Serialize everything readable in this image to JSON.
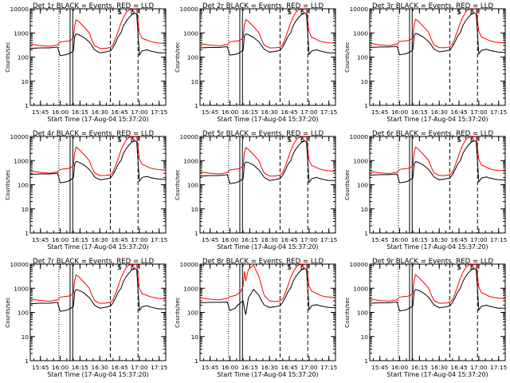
{
  "chart_data": {
    "type": "line",
    "y_scale": "log",
    "ylim": [
      1,
      10000
    ],
    "xlim": [
      "15:37:20",
      "17:20:00"
    ],
    "ylabel": "Counts/sec",
    "xlabel": "Start Time (17-Aug-04 15:37:20)",
    "x_ticks": [
      "15:45",
      "16:00",
      "16:15",
      "16:30",
      "16:45",
      "17:00",
      "17:15"
    ],
    "y_ticks": [
      "1",
      "10",
      "100",
      "1000",
      "10000"
    ],
    "markers": [
      "S",
      "E"
    ],
    "colors": {
      "events": "#000000",
      "lld": "#ff0000"
    },
    "vertical_lines": {
      "dotted": "15:59:00",
      "solid": [
        "16:07:30",
        "16:09:30"
      ],
      "dashed": [
        "16:38:00",
        "16:59:00"
      ]
    },
    "times": [
      "15:37:20",
      "15:45:00",
      "15:52:00",
      "15:58:00",
      "16:00:00",
      "16:04:00",
      "16:06:00",
      "16:08:00",
      "16:10:00",
      "16:11:00",
      "16:12:00",
      "16:14:00",
      "16:18:00",
      "16:22:00",
      "16:24:00",
      "16:26:00",
      "16:30:00",
      "16:34:00",
      "16:38:00",
      "16:40:00",
      "16:42:00",
      "16:44:00",
      "16:46:00",
      "16:48:00",
      "16:50:00",
      "16:52:00",
      "16:54:00",
      "16:56:00",
      "16:58:00",
      "17:00:00",
      "17:02:00",
      "17:04:00",
      "17:06:00",
      "17:08:00",
      "17:10:00",
      "17:12:00",
      "17:15:00",
      "17:20:00"
    ],
    "panels": [
      {
        "title": "Det 1r BLACK = Events, RED = LLD",
        "events": [
          230,
          240,
          240,
          260,
          115,
          125,
          135,
          150,
          180,
          700,
          900,
          850,
          650,
          420,
          300,
          200,
          150,
          160,
          180,
          250,
          400,
          700,
          1000,
          2000,
          3000,
          4200,
          5500,
          7000,
          6000,
          120,
          180,
          190,
          200,
          180,
          170,
          160,
          150,
          150
        ],
        "lld": [
          350,
          300,
          280,
          320,
          420,
          450,
          460,
          500,
          600,
          2000,
          3500,
          3000,
          1800,
          1000,
          500,
          300,
          230,
          230,
          250,
          320,
          600,
          1200,
          2500,
          4500,
          7000,
          9000,
          9500,
          10000,
          9500,
          1000,
          600,
          550,
          500,
          450,
          420,
          400,
          380,
          360
        ]
      },
      {
        "title": "Det 2r BLACK = Events, RED = LLD",
        "events": [
          240,
          250,
          250,
          270,
          120,
          130,
          140,
          160,
          190,
          720,
          900,
          850,
          650,
          420,
          300,
          210,
          160,
          170,
          190,
          260,
          420,
          720,
          1000,
          2000,
          3100,
          4300,
          5600,
          7000,
          6000,
          130,
          180,
          190,
          200,
          180,
          170,
          160,
          150,
          150
        ],
        "lld": [
          360,
          310,
          290,
          330,
          430,
          460,
          470,
          510,
          610,
          2100,
          3600,
          3000,
          1800,
          1000,
          520,
          310,
          240,
          240,
          260,
          330,
          620,
          1250,
          2600,
          4600,
          7100,
          9100,
          9600,
          10000,
          9500,
          1100,
          650,
          600,
          520,
          460,
          430,
          410,
          390,
          370
        ]
      },
      {
        "title": "Det 3r BLACK = Events, RED = LLD",
        "events": [
          250,
          260,
          260,
          280,
          125,
          135,
          145,
          165,
          200,
          750,
          950,
          880,
          670,
          430,
          310,
          215,
          165,
          175,
          195,
          270,
          430,
          740,
          1050,
          2050,
          3200,
          4400,
          5700,
          7100,
          6100,
          135,
          190,
          200,
          210,
          190,
          180,
          170,
          160,
          155
        ],
        "lld": [
          370,
          320,
          300,
          340,
          440,
          470,
          480,
          520,
          620,
          2150,
          3700,
          3100,
          1850,
          1050,
          530,
          320,
          245,
          245,
          265,
          340,
          640,
          1300,
          2650,
          4700,
          7200,
          9200,
          9700,
          10000,
          9600,
          1150,
          680,
          620,
          540,
          480,
          450,
          420,
          400,
          380
        ]
      },
      {
        "title": "Det 4r BLACK = Events, RED = LLD",
        "events": [
          270,
          280,
          280,
          300,
          120,
          130,
          140,
          160,
          195,
          720,
          920,
          860,
          660,
          430,
          310,
          210,
          160,
          170,
          190,
          260,
          420,
          720,
          1000,
          2000,
          3100,
          4300,
          5600,
          7000,
          6000,
          140,
          200,
          210,
          220,
          200,
          190,
          180,
          170,
          165
        ],
        "lld": [
          380,
          320,
          300,
          340,
          430,
          460,
          470,
          510,
          610,
          2100,
          3600,
          3000,
          1800,
          1000,
          520,
          310,
          240,
          240,
          260,
          330,
          620,
          1250,
          2600,
          4600,
          7100,
          9100,
          9600,
          10000,
          9500,
          1200,
          700,
          640,
          560,
          500,
          470,
          440,
          420,
          400
        ]
      },
      {
        "title": "Det 5r BLACK = Events, RED = LLD",
        "events": [
          230,
          240,
          240,
          260,
          110,
          120,
          130,
          150,
          180,
          700,
          880,
          830,
          640,
          410,
          290,
          200,
          150,
          160,
          180,
          250,
          400,
          700,
          980,
          1950,
          3000,
          4200,
          5500,
          6900,
          5900,
          125,
          180,
          190,
          200,
          180,
          170,
          160,
          150,
          150
        ],
        "lld": [
          340,
          300,
          280,
          320,
          410,
          440,
          450,
          490,
          590,
          2000,
          3500,
          2900,
          1750,
          980,
          500,
          300,
          230,
          230,
          250,
          320,
          600,
          1200,
          2500,
          4500,
          7000,
          9000,
          9500,
          10000,
          9400,
          1000,
          620,
          560,
          500,
          450,
          420,
          400,
          380,
          360
        ]
      },
      {
        "title": "Det 6r BLACK = Events, RED = LLD",
        "events": [
          250,
          260,
          260,
          280,
          120,
          130,
          140,
          160,
          190,
          720,
          900,
          850,
          650,
          420,
          300,
          210,
          160,
          170,
          190,
          260,
          420,
          720,
          1000,
          2000,
          3100,
          4300,
          5600,
          7000,
          6000,
          130,
          190,
          200,
          210,
          190,
          180,
          170,
          160,
          155
        ],
        "lld": [
          360,
          310,
          290,
          330,
          430,
          460,
          470,
          510,
          610,
          2100,
          3600,
          3000,
          1800,
          1000,
          520,
          310,
          240,
          240,
          260,
          330,
          620,
          1250,
          2600,
          4600,
          7100,
          9100,
          9600,
          10000,
          9500,
          1100,
          650,
          600,
          520,
          460,
          430,
          410,
          390,
          370
        ]
      },
      {
        "title": "Det 7r BLACK = Events, RED = LLD",
        "events": [
          230,
          240,
          240,
          260,
          110,
          120,
          130,
          150,
          180,
          700,
          880,
          830,
          640,
          410,
          290,
          200,
          150,
          160,
          180,
          250,
          400,
          700,
          980,
          1950,
          3000,
          4200,
          5500,
          6900,
          5900,
          120,
          170,
          180,
          190,
          170,
          160,
          150,
          140,
          140
        ],
        "lld": [
          360,
          310,
          290,
          330,
          430,
          460,
          470,
          510,
          610,
          2100,
          3600,
          3000,
          1800,
          1000,
          520,
          310,
          240,
          240,
          260,
          330,
          620,
          1250,
          2600,
          4600,
          7100,
          9100,
          9600,
          10000,
          9500,
          1000,
          600,
          550,
          500,
          450,
          420,
          400,
          380,
          360
        ]
      },
      {
        "title": "Det 8r BLACK = Events, RED = LLD",
        "events": [
          250,
          260,
          260,
          270,
          120,
          150,
          200,
          250,
          300,
          150,
          80,
          400,
          900,
          500,
          300,
          200,
          160,
          170,
          190,
          260,
          420,
          720,
          1000,
          2000,
          3100,
          4300,
          5600,
          7000,
          6000,
          130,
          190,
          200,
          210,
          190,
          180,
          170,
          160,
          155
        ],
        "lld": [
          400,
          350,
          330,
          380,
          450,
          500,
          600,
          700,
          1200,
          5000,
          2000,
          6000,
          9000,
          3000,
          1200,
          500,
          300,
          280,
          300,
          360,
          650,
          1300,
          2700,
          4700,
          7200,
          9200,
          9700,
          10000,
          9600,
          1200,
          750,
          680,
          600,
          520,
          480,
          450,
          430,
          410
        ]
      },
      {
        "title": "Det 9r BLACK = Events, RED = LLD",
        "events": [
          240,
          250,
          250,
          270,
          115,
          125,
          135,
          155,
          185,
          710,
          890,
          840,
          645,
          415,
          295,
          205,
          155,
          165,
          185,
          255,
          410,
          710,
          990,
          1980,
          3050,
          4250,
          5550,
          6950,
          5950,
          125,
          180,
          190,
          200,
          180,
          170,
          160,
          150,
          150
        ],
        "lld": [
          360,
          310,
          290,
          330,
          430,
          460,
          470,
          510,
          610,
          2100,
          3600,
          3000,
          1800,
          1000,
          520,
          310,
          240,
          240,
          260,
          330,
          620,
          1250,
          2600,
          4600,
          7100,
          9100,
          9600,
          10000,
          9500,
          1100,
          650,
          600,
          520,
          460,
          430,
          410,
          390,
          370
        ]
      }
    ]
  }
}
